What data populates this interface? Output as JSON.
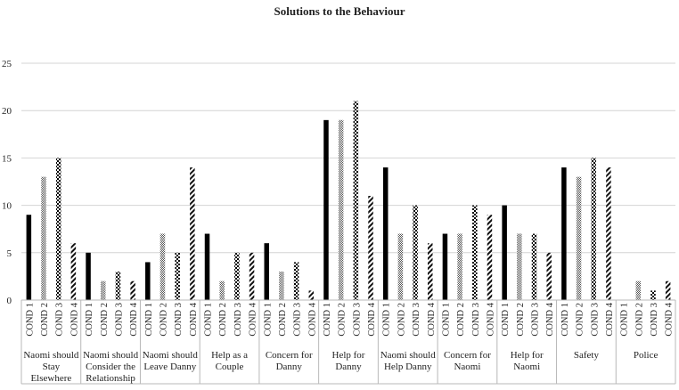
{
  "chart_data": {
    "type": "bar",
    "title": "Solutions to the Behaviour",
    "xlabel": "",
    "ylabel": "",
    "ylim": [
      0,
      25
    ],
    "yticks": [
      0,
      5,
      10,
      15,
      20,
      25
    ],
    "grid": true,
    "legend": "none",
    "conditions": [
      "COND 1",
      "COND 2",
      "COND 3",
      "COND 4"
    ],
    "groups": [
      {
        "label": [
          "Naomi should",
          "Stay",
          "Elsewhere"
        ],
        "values": [
          9,
          13,
          15,
          6
        ]
      },
      {
        "label": [
          "Naomi should",
          "Consider the",
          "Relationship"
        ],
        "values": [
          5,
          2,
          3,
          2
        ]
      },
      {
        "label": [
          "Naomi should",
          "Leave Danny"
        ],
        "values": [
          4,
          7,
          5,
          14
        ]
      },
      {
        "label": [
          "Help as a",
          "Couple"
        ],
        "values": [
          7,
          2,
          5,
          5
        ]
      },
      {
        "label": [
          "Concern for",
          "Danny"
        ],
        "values": [
          6,
          3,
          4,
          1
        ]
      },
      {
        "label": [
          "Help for",
          "Danny"
        ],
        "values": [
          19,
          19,
          21,
          11
        ]
      },
      {
        "label": [
          "Naomi should",
          "Help Danny"
        ],
        "values": [
          14,
          7,
          10,
          6
        ]
      },
      {
        "label": [
          "Concern for",
          "Naomi"
        ],
        "values": [
          7,
          7,
          10,
          9
        ]
      },
      {
        "label": [
          "Help for",
          "Naomi"
        ],
        "values": [
          10,
          7,
          7,
          5
        ]
      },
      {
        "label": [
          "Safety"
        ],
        "values": [
          14,
          13,
          15,
          14
        ]
      },
      {
        "label": [
          "Police"
        ],
        "values": [
          0,
          2,
          1,
          2
        ]
      }
    ]
  }
}
